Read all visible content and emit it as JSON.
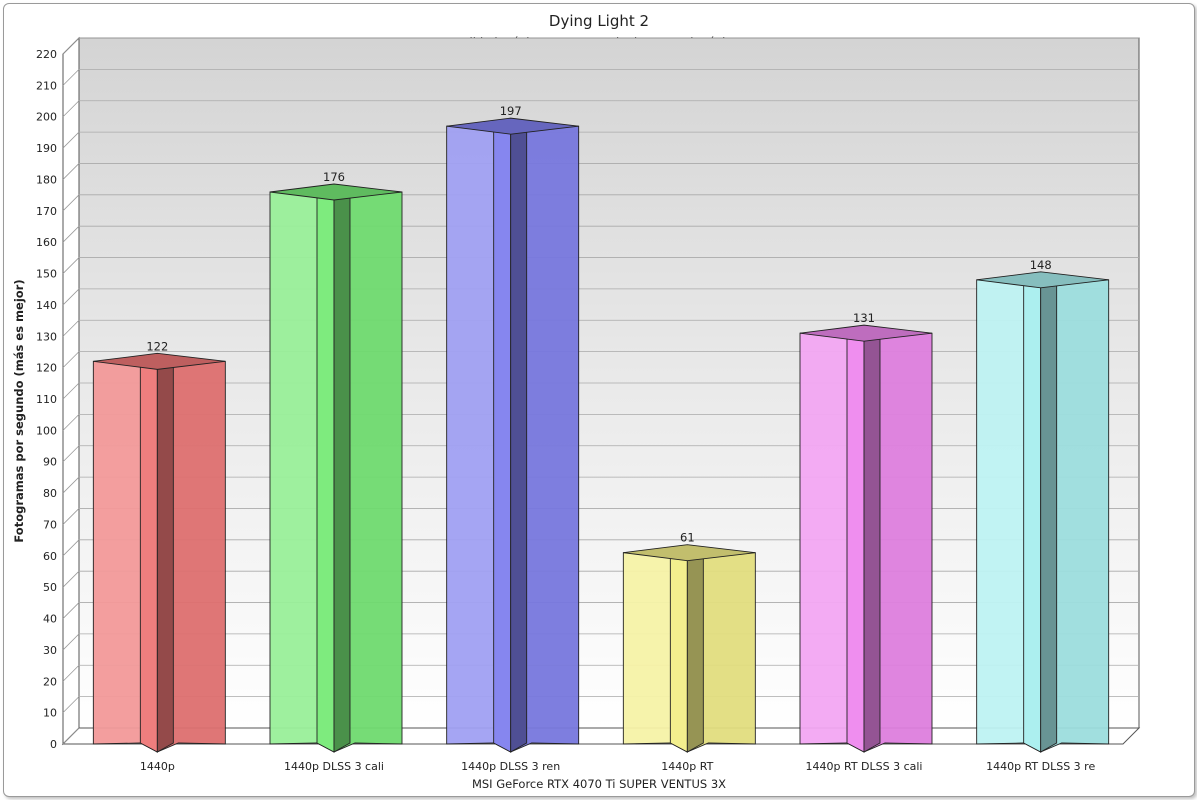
{
  "colors": {
    "background_top": "#d6d6d6",
    "background_bottom": "#ffffff",
    "bars": [
      "#ee7777",
      "#77ea77",
      "#8080ee",
      "#f2ee88",
      "#ee88ee",
      "#a8eeee"
    ]
  },
  "chart_data": {
    "type": "bar",
    "title": "Dying Light 2",
    "subtitle": "Calidad máxima, RT= trazado de rayos al máximo",
    "xlabel": "MSI GeForce RTX 4070 Ti SUPER VENTUS 3X",
    "ylabel": "Fotogramas por segundo (más es mejor)",
    "categories": [
      "1440p",
      "1440p DLSS 3 cali",
      "1440p DLSS 3 ren",
      "1440p RT",
      "1440p RT DLSS 3 cali",
      "1440p RT DLSS 3 re"
    ],
    "values": [
      122,
      176,
      197,
      61,
      131,
      148
    ],
    "ylim": [
      0,
      220
    ],
    "ytick_step": 10,
    "grid": true,
    "legend": "none"
  }
}
